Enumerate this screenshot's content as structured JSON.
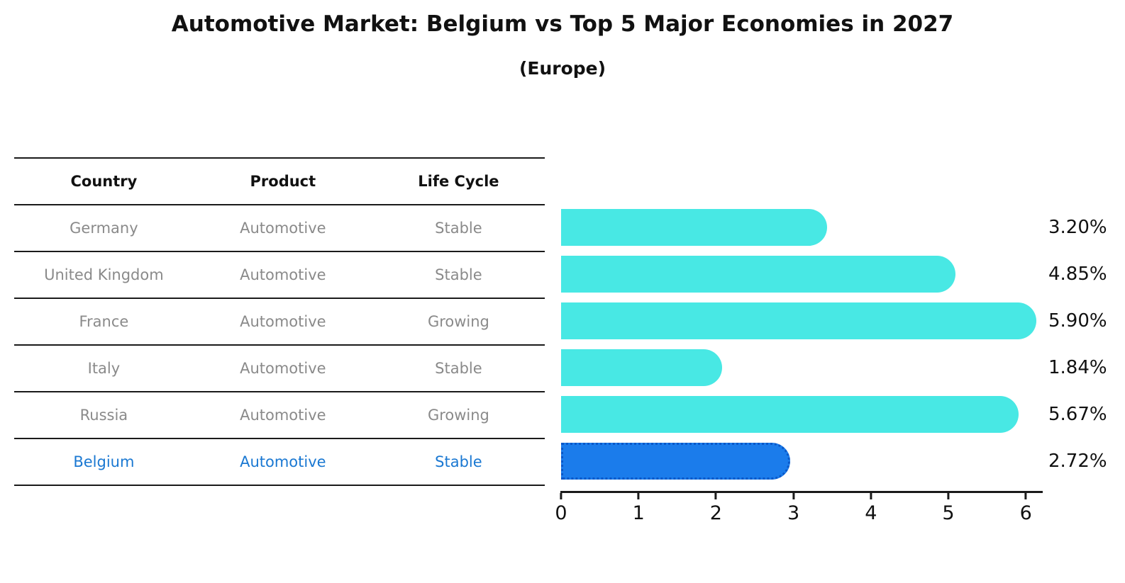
{
  "title": "Automotive Market: Belgium vs Top 5 Major Economies in 2027",
  "subtitle": "(Europe)",
  "table": {
    "headers": [
      "Country",
      "Product",
      "Life Cycle"
    ],
    "rows": [
      {
        "country": "Germany",
        "product": "Automotive",
        "life_cycle": "Stable"
      },
      {
        "country": "United Kingdom",
        "product": "Automotive",
        "life_cycle": "Stable"
      },
      {
        "country": "France",
        "product": "Automotive",
        "life_cycle": "Growing"
      },
      {
        "country": "Italy",
        "product": "Automotive",
        "life_cycle": "Stable"
      },
      {
        "country": "Russia",
        "product": "Automotive",
        "life_cycle": "Growing"
      },
      {
        "country": "Belgium",
        "product": "Automotive",
        "life_cycle": "Stable"
      }
    ],
    "text_color": "#8a8a8a",
    "header_color": "#111111",
    "highlight_row_index": 5,
    "highlight_text_color": "#1a78d2"
  },
  "chart_data": {
    "type": "bar",
    "orientation": "horizontal",
    "categories": [
      "Germany",
      "United Kingdom",
      "France",
      "Italy",
      "Russia",
      "Belgium"
    ],
    "values": [
      3.2,
      4.85,
      5.9,
      1.84,
      5.67,
      2.72
    ],
    "labels": [
      "3.20%",
      "4.85%",
      "5.90%",
      "1.84%",
      "5.67%",
      "2.72%"
    ],
    "x_ticks": [
      "0",
      "1",
      "2",
      "3",
      "4",
      "5",
      "6"
    ],
    "xlim": [
      0,
      6.2
    ],
    "grid": false,
    "legend": false,
    "bar_color": "#48e8e4",
    "highlight_index": 5,
    "highlight_color": "#1b7ceb",
    "highlight_border_color": "#0a58c8",
    "axis_color": "#1a1a1a",
    "value_label_color": "#111111"
  }
}
